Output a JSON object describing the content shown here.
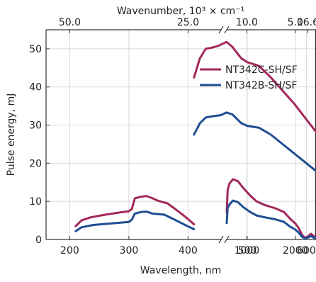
{
  "chart_data": {
    "type": "line",
    "title": "",
    "xlabel": "Wavelength, nm",
    "ylabel": "Pulse energy, mJ",
    "top_xlabel": "Wavenumber, 10³ × cm⁻¹",
    "ylim": [
      0,
      55
    ],
    "yticks": [
      0,
      10,
      20,
      30,
      40,
      50
    ],
    "grid": true,
    "legend_position": "top-right",
    "axis_break": "between 700 nm and 750 nm",
    "bottom_ticks_left": [
      {
        "value": 200,
        "label": "200"
      },
      {
        "value": 300,
        "label": "300"
      },
      {
        "value": 400,
        "label": "400"
      },
      {
        "value": 500,
        "label": "500"
      },
      {
        "value": 600,
        "label": "600"
      }
    ],
    "bottom_ticks_right": [
      {
        "value": 1000,
        "label": "1000"
      },
      {
        "value": 2000,
        "label": "2000"
      }
    ],
    "top_ticks_left": [
      {
        "value": 50.0,
        "label": "50.0"
      },
      {
        "value": 25.0,
        "label": "25.0"
      },
      {
        "value": 16.6,
        "label": "16.6"
      }
    ],
    "top_ticks_right": [
      {
        "value": 10.0,
        "label": "10.0"
      },
      {
        "value": 5.0,
        "label": "5.0"
      }
    ],
    "series": [
      {
        "name": "NT342C-SH/SF",
        "color": "#a3285c",
        "segments": [
          [
            [
              210,
              3.5
            ],
            [
              220,
              5.0
            ],
            [
              235,
              5.8
            ],
            [
              260,
              6.5
            ],
            [
              285,
              7.1
            ],
            [
              300,
              7.4
            ],
            [
              305,
              8.0
            ],
            [
              310,
              10.8
            ],
            [
              320,
              11.2
            ],
            [
              330,
              11.4
            ],
            [
              340,
              10.8
            ],
            [
              350,
              10.1
            ],
            [
              365,
              9.5
            ],
            [
              380,
              7.8
            ],
            [
              395,
              6.0
            ],
            [
              410,
              4.0
            ]
          ],
          [
            [
              410,
              42.5
            ],
            [
              420,
              47.5
            ],
            [
              430,
              50.0
            ],
            [
              440,
              50.3
            ],
            [
              450,
              50.7
            ],
            [
              465,
              51.8
            ],
            [
              475,
              50.5
            ],
            [
              490,
              47.5
            ],
            [
              500,
              46.5
            ],
            [
              520,
              45.5
            ],
            [
              540,
              42.5
            ],
            [
              560,
              39.0
            ],
            [
              580,
              35.5
            ],
            [
              600,
              31.5
            ],
            [
              620,
              27.5
            ],
            [
              640,
              23.5
            ],
            [
              660,
              19.5
            ],
            [
              680,
              16.5
            ],
            [
              700,
              13.2
            ]
          ],
          [
            [
              750,
              7.0
            ],
            [
              760,
              13.0
            ],
            [
              780,
              14.7
            ],
            [
              820,
              15.8
            ],
            [
              880,
              15.3
            ],
            [
              950,
              13.5
            ],
            [
              1050,
              11.5
            ],
            [
              1150,
              10.0
            ],
            [
              1300,
              9.0
            ],
            [
              1500,
              8.2
            ],
            [
              1700,
              7.2
            ],
            [
              1850,
              5.5
            ],
            [
              2000,
              4.2
            ],
            [
              2100,
              3.0
            ],
            [
              2200,
              1.2
            ],
            [
              2300,
              0.4
            ],
            [
              2400,
              0.8
            ],
            [
              2500,
              1.5
            ],
            [
              2600,
              0.9
            ],
            [
              2700,
              0.5
            ]
          ]
        ]
      },
      {
        "name": "NT342B-SH/SF",
        "color": "#1f4e93",
        "segments": [
          [
            [
              210,
              2.2
            ],
            [
              220,
              3.2
            ],
            [
              240,
              3.8
            ],
            [
              270,
              4.2
            ],
            [
              300,
              4.6
            ],
            [
              305,
              5.2
            ],
            [
              310,
              6.8
            ],
            [
              320,
              7.2
            ],
            [
              330,
              7.3
            ],
            [
              340,
              6.8
            ],
            [
              360,
              6.5
            ],
            [
              380,
              5.0
            ],
            [
              395,
              3.8
            ],
            [
              410,
              2.7
            ]
          ],
          [
            [
              410,
              27.5
            ],
            [
              420,
              30.5
            ],
            [
              430,
              32.0
            ],
            [
              445,
              32.4
            ],
            [
              455,
              32.6
            ],
            [
              465,
              33.3
            ],
            [
              475,
              32.8
            ],
            [
              490,
              30.5
            ],
            [
              500,
              29.8
            ],
            [
              520,
              29.3
            ],
            [
              540,
              27.5
            ],
            [
              560,
              25.0
            ],
            [
              580,
              22.5
            ],
            [
              600,
              20.0
            ],
            [
              620,
              17.5
            ],
            [
              640,
              15.0
            ],
            [
              660,
              13.0
            ],
            [
              680,
              11.0
            ],
            [
              700,
              8.8
            ]
          ],
          [
            [
              750,
              4.3
            ],
            [
              760,
              8.2
            ],
            [
              780,
              9.2
            ],
            [
              820,
              10.2
            ],
            [
              880,
              9.8
            ],
            [
              950,
              8.5
            ],
            [
              1050,
              7.2
            ],
            [
              1150,
              6.3
            ],
            [
              1300,
              5.8
            ],
            [
              1500,
              5.3
            ],
            [
              1700,
              4.6
            ],
            [
              1850,
              3.4
            ],
            [
              2000,
              2.6
            ],
            [
              2100,
              1.8
            ],
            [
              2200,
              0.7
            ],
            [
              2300,
              0.3
            ],
            [
              2400,
              0.5
            ],
            [
              2500,
              0.9
            ],
            [
              2600,
              0.5
            ],
            [
              2700,
              0.3
            ]
          ]
        ]
      }
    ]
  }
}
